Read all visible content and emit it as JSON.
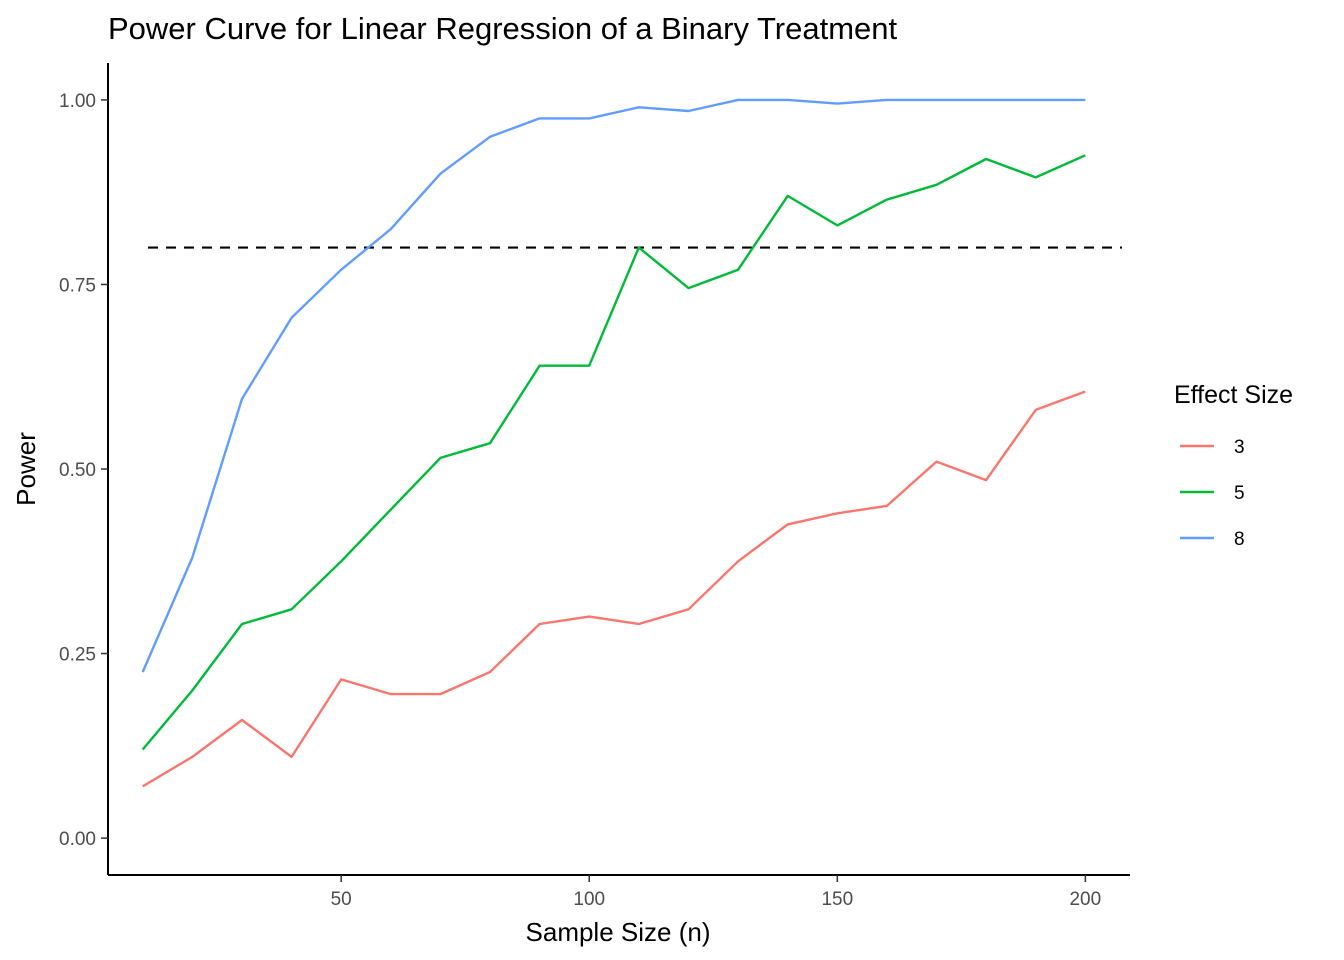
{
  "chart_data": {
    "type": "line",
    "title": "Power Curve for Linear Regression of a Binary Treatment",
    "xlabel": "Sample Size (n)",
    "ylabel": "Power",
    "xlim": [
      3,
      209
    ],
    "ylim": [
      -0.05,
      1.05
    ],
    "x_ticks": [
      50,
      100,
      150,
      200
    ],
    "x_tick_labels": [
      "50",
      "100",
      "150",
      "200"
    ],
    "y_ticks": [
      0,
      0.25,
      0.5,
      0.75,
      1
    ],
    "y_tick_labels": [
      "0.00",
      "0.25",
      "0.50",
      "0.75",
      "1.00"
    ],
    "grid": false,
    "reference_line": {
      "y": 0.8,
      "style": "dashed",
      "color": "#000000"
    },
    "legend": {
      "title": "Effect Size",
      "position": "right"
    },
    "x": [
      10,
      20,
      30,
      40,
      50,
      60,
      70,
      80,
      90,
      100,
      110,
      120,
      130,
      140,
      150,
      160,
      170,
      180,
      190,
      200
    ],
    "series": [
      {
        "name": "3",
        "color": "#F8766D",
        "values": [
          0.07,
          0.11,
          0.16,
          0.11,
          0.215,
          0.195,
          0.195,
          0.225,
          0.29,
          0.3,
          0.29,
          0.31,
          0.375,
          0.425,
          0.44,
          0.45,
          0.51,
          0.485,
          0.58,
          0.605
        ]
      },
      {
        "name": "5",
        "color": "#00BA38",
        "values": [
          0.12,
          0.2,
          0.29,
          0.31,
          0.375,
          0.445,
          0.515,
          0.535,
          0.64,
          0.64,
          0.8,
          0.745,
          0.77,
          0.87,
          0.83,
          0.865,
          0.885,
          0.92,
          0.895,
          0.925
        ]
      },
      {
        "name": "8",
        "color": "#619CFF",
        "values": [
          0.225,
          0.38,
          0.595,
          0.705,
          0.77,
          0.825,
          0.9,
          0.95,
          0.975,
          0.975,
          0.99,
          0.985,
          1.0,
          1.0,
          0.995,
          1.0,
          1.0,
          1.0,
          1.0,
          1.0
        ]
      }
    ]
  }
}
